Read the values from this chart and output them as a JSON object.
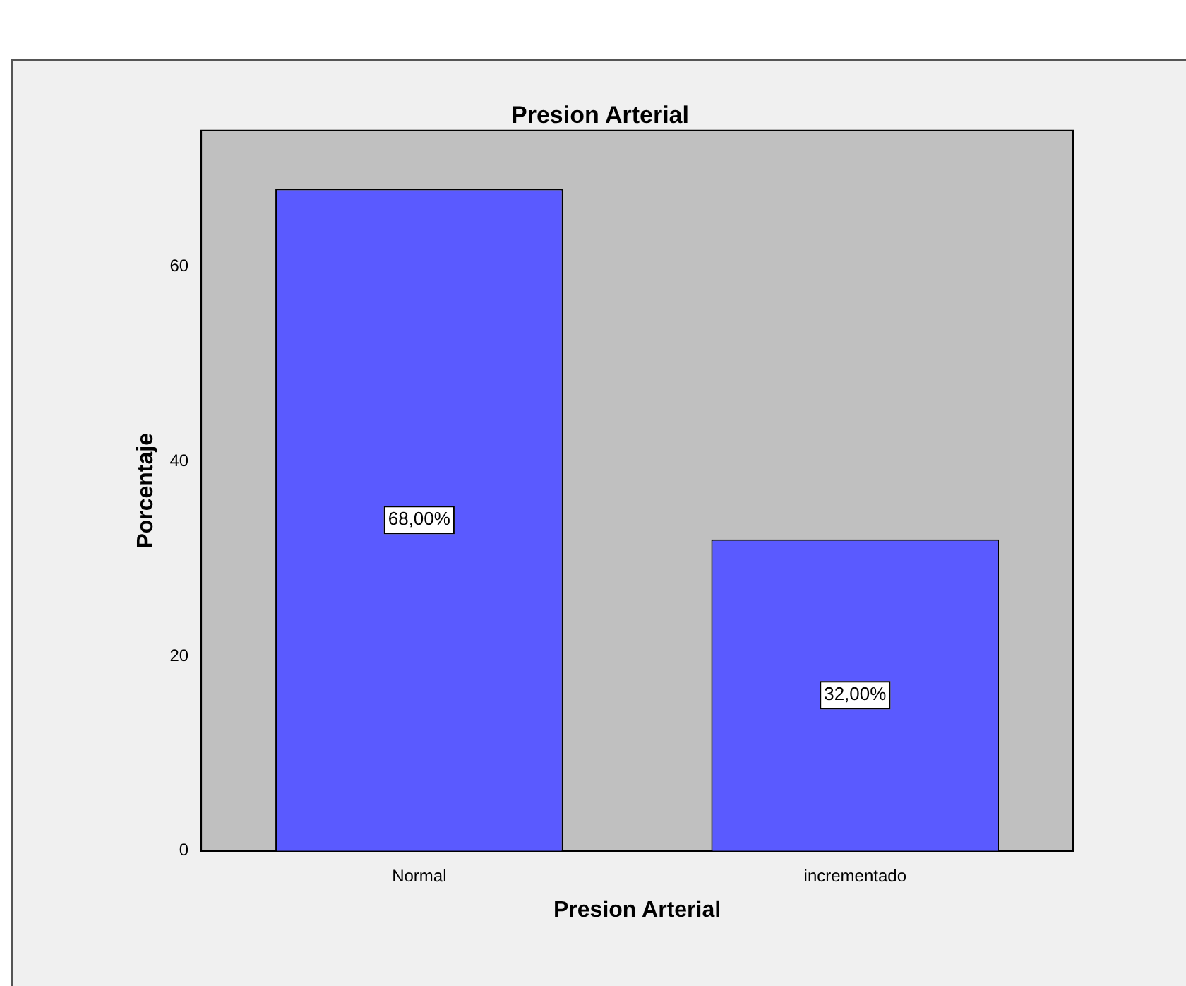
{
  "chart_data": {
    "type": "bar",
    "title": "Presion Arterial",
    "xlabel": "Presion Arterial",
    "ylabel": "Porcentaje",
    "categories": [
      "Normal",
      "incrementado"
    ],
    "values": [
      68,
      32
    ],
    "color": "#5a5aff",
    "value_labels": [
      "68,00%",
      "32,00%"
    ],
    "ylim": [
      0,
      74
    ],
    "yticks": [
      0,
      20,
      40,
      60
    ],
    "grid": false,
    "legend": false
  }
}
